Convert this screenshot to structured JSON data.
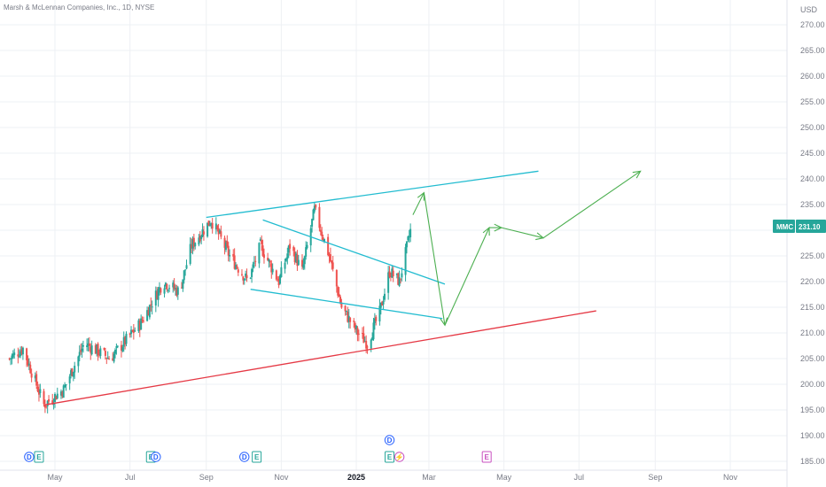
{
  "chart_data": {
    "type": "candlestick",
    "title": "Marsh & McLennan Companies, Inc., 1D, NYSE",
    "currency": "USD",
    "ticker": "MMC",
    "last_price": "231.10",
    "y_ticks": [
      "270.00",
      "265.00",
      "260.00",
      "255.00",
      "250.00",
      "245.00",
      "240.00",
      "235.00",
      "230.00",
      "225.00",
      "220.00",
      "215.00",
      "210.00",
      "205.00",
      "200.00",
      "195.00",
      "190.00",
      "185.00"
    ],
    "x_ticks": [
      "May",
      "Jul",
      "Sep",
      "Nov",
      "2025",
      "Mar",
      "May",
      "Jul",
      "Sep",
      "Nov"
    ],
    "ylim": [
      185,
      273
    ],
    "colors": {
      "up": "#26a69a",
      "down": "#ef5350",
      "channel": "#22bcd0",
      "support": "#e53945",
      "arrow": "#4caf50",
      "badge_bg": "#26a69a"
    },
    "price_path": [
      {
        "date": "2024-03-25",
        "close": 205
      },
      {
        "date": "2024-04-05",
        "close": 207
      },
      {
        "date": "2024-04-22",
        "close": 196
      },
      {
        "date": "2024-05-08",
        "close": 199
      },
      {
        "date": "2024-05-25",
        "close": 208
      },
      {
        "date": "2024-06-15",
        "close": 205
      },
      {
        "date": "2024-07-10",
        "close": 212
      },
      {
        "date": "2024-07-28",
        "close": 220
      },
      {
        "date": "2024-08-10",
        "close": 218
      },
      {
        "date": "2024-08-20",
        "close": 227
      },
      {
        "date": "2024-09-05",
        "close": 232
      },
      {
        "date": "2024-09-20",
        "close": 225
      },
      {
        "date": "2024-10-05",
        "close": 220
      },
      {
        "date": "2024-10-15",
        "close": 227
      },
      {
        "date": "2024-10-30",
        "close": 220
      },
      {
        "date": "2024-11-08",
        "close": 227
      },
      {
        "date": "2024-11-18",
        "close": 222
      },
      {
        "date": "2024-11-28",
        "close": 234
      },
      {
        "date": "2024-12-10",
        "close": 225
      },
      {
        "date": "2024-12-20",
        "close": 215
      },
      {
        "date": "2025-01-02",
        "close": 210
      },
      {
        "date": "2025-01-10",
        "close": 208
      },
      {
        "date": "2025-01-20",
        "close": 214
      },
      {
        "date": "2025-01-28",
        "close": 222
      },
      {
        "date": "2025-02-05",
        "close": 220
      },
      {
        "date": "2025-02-15",
        "close": 231
      }
    ],
    "trendlines": [
      {
        "name": "upper",
        "color": "channel",
        "x": [
          "2024-09-01",
          "2025-05-29"
        ],
        "y": [
          232.5,
          241.5
        ]
      },
      {
        "name": "falling-upper",
        "color": "channel",
        "x": [
          "2024-10-17",
          "2025-03-14"
        ],
        "y": [
          232,
          219.5
        ]
      },
      {
        "name": "falling-lower",
        "color": "channel",
        "x": [
          "2024-10-07",
          "2025-03-12"
        ],
        "y": [
          218.5,
          212.8
        ]
      },
      {
        "name": "support",
        "color": "support",
        "x": [
          "2024-04-23",
          "2025-07-15"
        ],
        "y": [
          196,
          214.3
        ]
      }
    ],
    "projection": [
      {
        "date": "2025-02-16",
        "price": 233
      },
      {
        "date": "2025-02-25",
        "price": 237.3
      },
      {
        "date": "2025-03-14",
        "price": 211.5
      },
      {
        "date": "2025-04-19",
        "price": 230.5
      },
      {
        "date": "2025-04-29",
        "price": 230.5
      },
      {
        "date": "2025-06-02",
        "price": 228.5
      },
      {
        "date": "2025-08-20",
        "price": 241.5
      }
    ],
    "events": [
      {
        "date": "2024-04-10",
        "type": "D",
        "row": 0
      },
      {
        "date": "2024-04-18",
        "type": "E",
        "row": 0
      },
      {
        "date": "2024-07-18",
        "type": "E",
        "row": 0
      },
      {
        "date": "2024-07-22",
        "type": "D",
        "row": 0
      },
      {
        "date": "2024-10-02",
        "type": "D",
        "row": 0
      },
      {
        "date": "2024-10-12",
        "type": "E",
        "row": 0
      },
      {
        "date": "2025-01-28",
        "type": "D",
        "row": 1
      },
      {
        "date": "2025-01-28",
        "type": "E",
        "row": 0
      },
      {
        "date": "2025-02-05",
        "type": "⚡",
        "row": 0
      },
      {
        "date": "2025-04-17",
        "type": "E",
        "row": 0
      }
    ]
  }
}
